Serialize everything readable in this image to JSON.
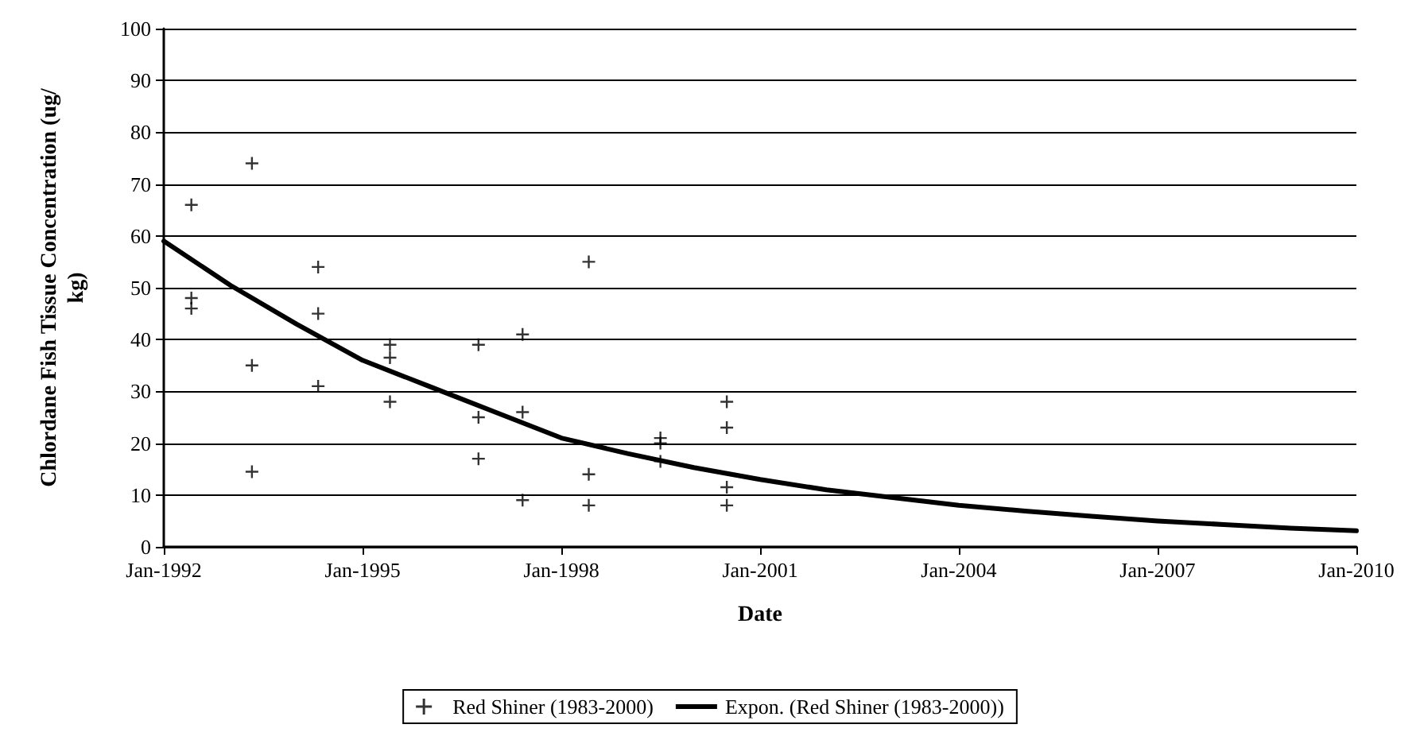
{
  "chart_data": {
    "type": "scatter",
    "xlabel": "Date",
    "ylabel": "Chlordane Fish Tissue Concentration (ug/kg)",
    "xlim": [
      "1992-01",
      "2010-01"
    ],
    "xticks": [
      {
        "value": "1992-01",
        "label": "Jan-1992"
      },
      {
        "value": "1995-01",
        "label": "Jan-1995"
      },
      {
        "value": "1998-01",
        "label": "Jan-1998"
      },
      {
        "value": "2001-01",
        "label": "Jan-2001"
      },
      {
        "value": "2004-01",
        "label": "Jan-2004"
      },
      {
        "value": "2007-01",
        "label": "Jan-2007"
      },
      {
        "value": "2010-01",
        "label": "Jan-2010"
      }
    ],
    "ylim": [
      0,
      100
    ],
    "yticks": [
      0,
      10,
      20,
      30,
      40,
      50,
      60,
      70,
      80,
      90,
      100
    ],
    "grid": "y",
    "legend": "bottom",
    "series": [
      {
        "name": "Red Shiner (1983-2000)",
        "marker": "cross",
        "color": "#000000",
        "x": [
          "1992-06",
          "1992-06",
          "1992-06",
          "1993-05",
          "1993-05",
          "1993-05",
          "1994-05",
          "1994-05",
          "1994-05",
          "1995-06",
          "1995-06",
          "1995-06",
          "1996-10",
          "1996-10",
          "1996-10",
          "1997-06",
          "1997-06",
          "1997-06",
          "1998-06",
          "1998-06",
          "1998-06",
          "1999-07",
          "1999-07",
          "1999-07",
          "2000-07",
          "2000-07",
          "2000-07",
          "2000-07"
        ],
        "values": [
          66,
          48,
          46,
          74,
          35,
          14.5,
          54,
          45,
          31,
          39,
          36.5,
          28,
          39,
          25,
          17,
          41,
          26,
          9,
          55,
          14,
          8,
          21,
          20,
          16.5,
          28,
          23,
          11.5,
          8
        ]
      },
      {
        "name": "Expon. (Red Shiner (1983-2000))",
        "type": "line",
        "marker": "none",
        "color": "#000000",
        "x": [
          "1992-01",
          "1993-01",
          "1994-01",
          "1995-01",
          "1996-01",
          "1997-01",
          "1998-01",
          "1999-01",
          "2000-01",
          "2001-01",
          "2002-01",
          "2003-01",
          "2004-01",
          "2005-01",
          "2006-01",
          "2007-01",
          "2008-01",
          "2009-01",
          "2010-01"
        ],
        "values": [
          59,
          50.5,
          43,
          36,
          31,
          26,
          21,
          18,
          15.3,
          13,
          11,
          9.5,
          8,
          6.9,
          5.9,
          5,
          4.3,
          3.6,
          3.1
        ]
      }
    ]
  }
}
